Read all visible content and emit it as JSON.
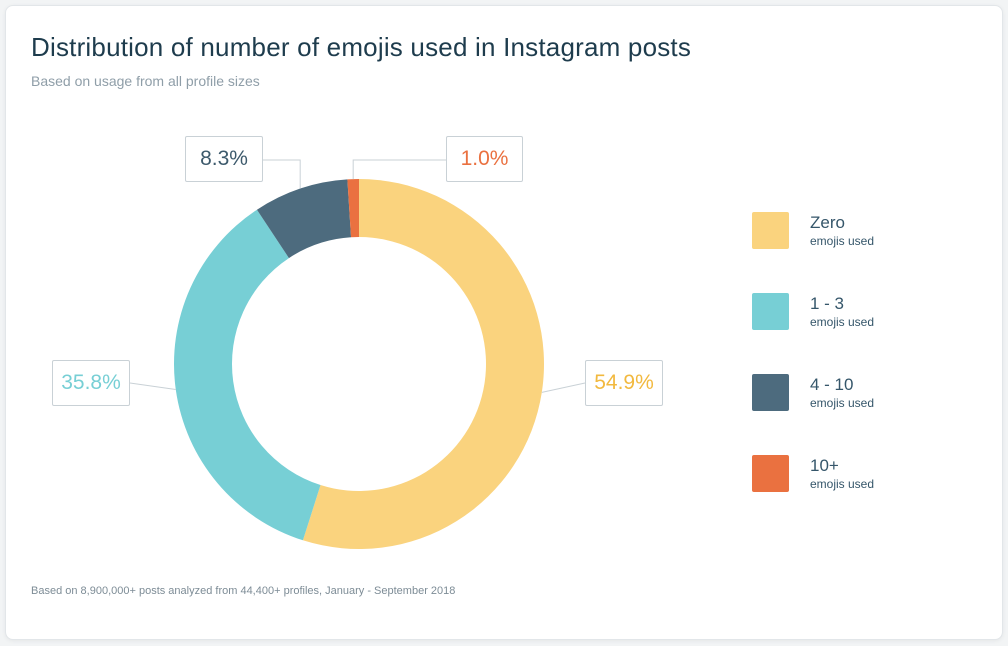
{
  "header": {
    "title": "Distribution of number of emojis used in Instagram posts",
    "subtitle": "Based on usage from all profile sizes"
  },
  "footnote": "Based on 8,900,000+ posts analyzed from 44,400+ profiles, January - September 2018",
  "chart_data": {
    "type": "pie",
    "donut": true,
    "title": "Distribution of number of emojis used in Instagram posts",
    "subtitle": "Based on usage from all profile sizes",
    "legend_position": "right",
    "slices": [
      {
        "label": "Zero",
        "sublabel": "emojis used",
        "value": 54.9,
        "display": "54.9%",
        "color": "#fad37e"
      },
      {
        "label": "1 - 3",
        "sublabel": "emojis used",
        "value": 35.8,
        "display": "35.8%",
        "color": "#77cfd5"
      },
      {
        "label": "4 - 10",
        "sublabel": "emojis used",
        "value": 8.3,
        "display": "8.3%",
        "color": "#4d6b7e"
      },
      {
        "label": "10+",
        "sublabel": "emojis used",
        "value": 1.0,
        "display": "1.0%",
        "color": "#ea7140"
      }
    ]
  }
}
